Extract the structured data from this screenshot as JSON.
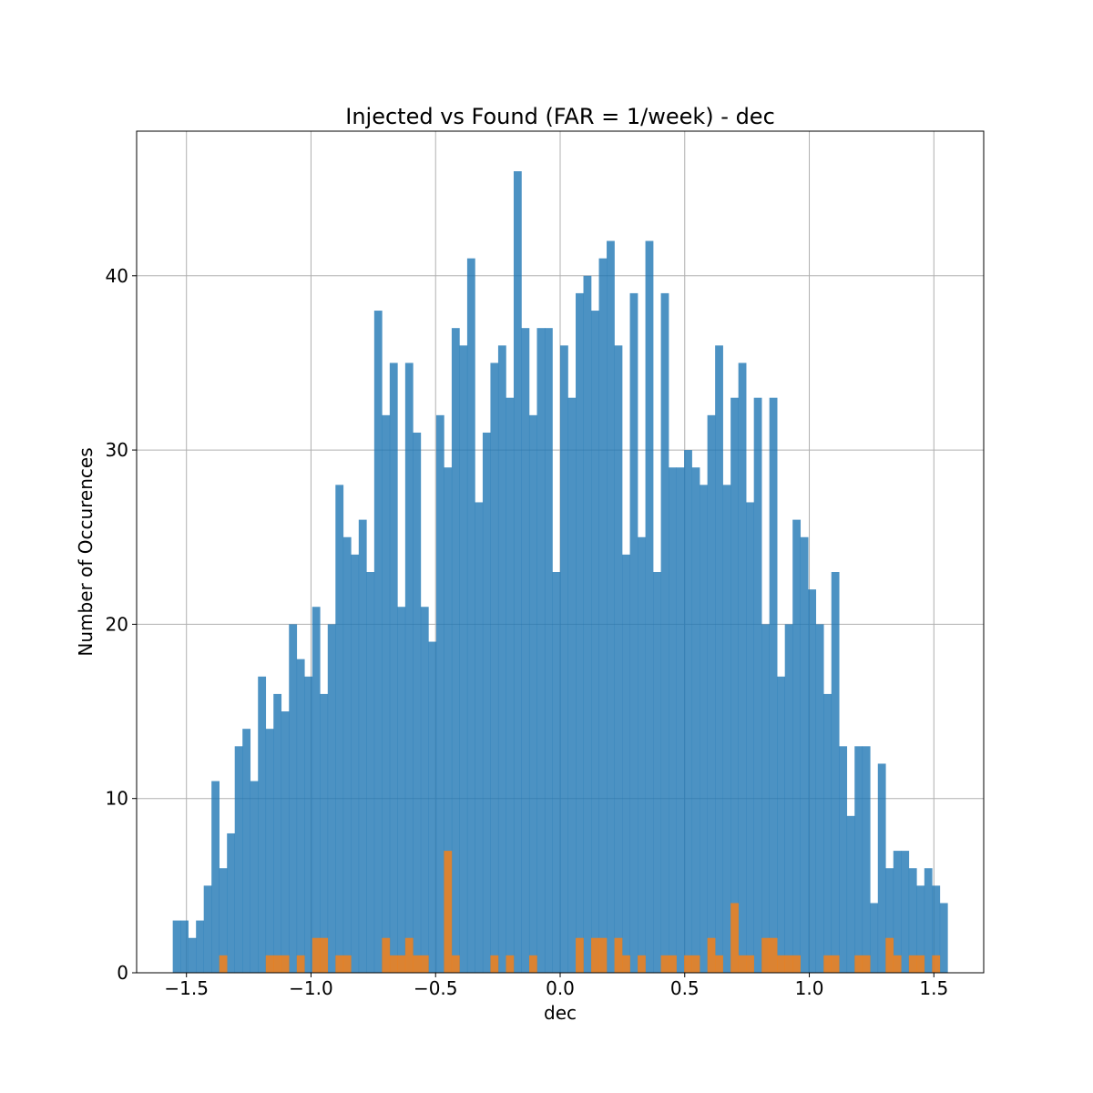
{
  "chart_data": {
    "type": "bar",
    "title": "Injected vs Found (FAR = 1/week) - dec",
    "xlabel": "dec",
    "ylabel": "Number of Occurences",
    "xlim": [
      -1.7,
      1.7
    ],
    "ylim": [
      0,
      48.3
    ],
    "x_ticks": [
      -1.5,
      -1.0,
      -0.5,
      0.0,
      0.5,
      1.0,
      1.5
    ],
    "x_tick_labels": [
      "−1.5",
      "−1.0",
      "−0.5",
      "0.0",
      "0.5",
      "1.0",
      "1.5"
    ],
    "y_ticks": [
      0,
      10,
      20,
      30,
      40
    ],
    "y_tick_labels": [
      "0",
      "10",
      "20",
      "30",
      "40"
    ],
    "grid": true,
    "legend": "none",
    "bins": {
      "start": -1.555,
      "width": 0.0311,
      "count": 100
    },
    "series": [
      {
        "color": "#1f77b4",
        "opacity": 0.8,
        "values": [
          3,
          3,
          2,
          3,
          5,
          11,
          6,
          8,
          13,
          14,
          11,
          17,
          14,
          16,
          15,
          20,
          18,
          17,
          21,
          16,
          20,
          28,
          25,
          24,
          26,
          23,
          38,
          32,
          35,
          21,
          35,
          31,
          21,
          19,
          32,
          29,
          37,
          36,
          41,
          27,
          31,
          35,
          36,
          33,
          46,
          37,
          32,
          37,
          37,
          23,
          36,
          33,
          39,
          40,
          38,
          41,
          42,
          36,
          24,
          39,
          25,
          42,
          23,
          39,
          29,
          29,
          30,
          29,
          28,
          32,
          36,
          28,
          33,
          35,
          27,
          33,
          20,
          33,
          17,
          20,
          26,
          25,
          22,
          20,
          16,
          23,
          13,
          9,
          13,
          13,
          4,
          12,
          6,
          7,
          7,
          6,
          5,
          6,
          5,
          4
        ]
      },
      {
        "color": "#ff7f0e",
        "opacity": 0.8,
        "values": [
          0,
          0,
          0,
          0,
          0,
          0,
          1,
          0,
          0,
          0,
          0,
          0,
          1,
          1,
          1,
          0,
          1,
          0,
          2,
          2,
          0,
          1,
          1,
          0,
          0,
          0,
          0,
          2,
          1,
          1,
          2,
          1,
          1,
          0,
          0,
          7,
          1,
          0,
          0,
          0,
          0,
          1,
          0,
          1,
          0,
          0,
          1,
          0,
          0,
          0,
          0,
          0,
          2,
          0,
          2,
          2,
          0,
          2,
          1,
          0,
          1,
          0,
          0,
          1,
          1,
          0,
          1,
          1,
          0,
          2,
          1,
          0,
          4,
          1,
          1,
          0,
          2,
          2,
          1,
          1,
          1,
          0,
          0,
          0,
          1,
          1,
          0,
          0,
          1,
          1,
          0,
          0,
          2,
          1,
          0,
          1,
          1,
          0,
          1,
          0
        ]
      }
    ]
  }
}
